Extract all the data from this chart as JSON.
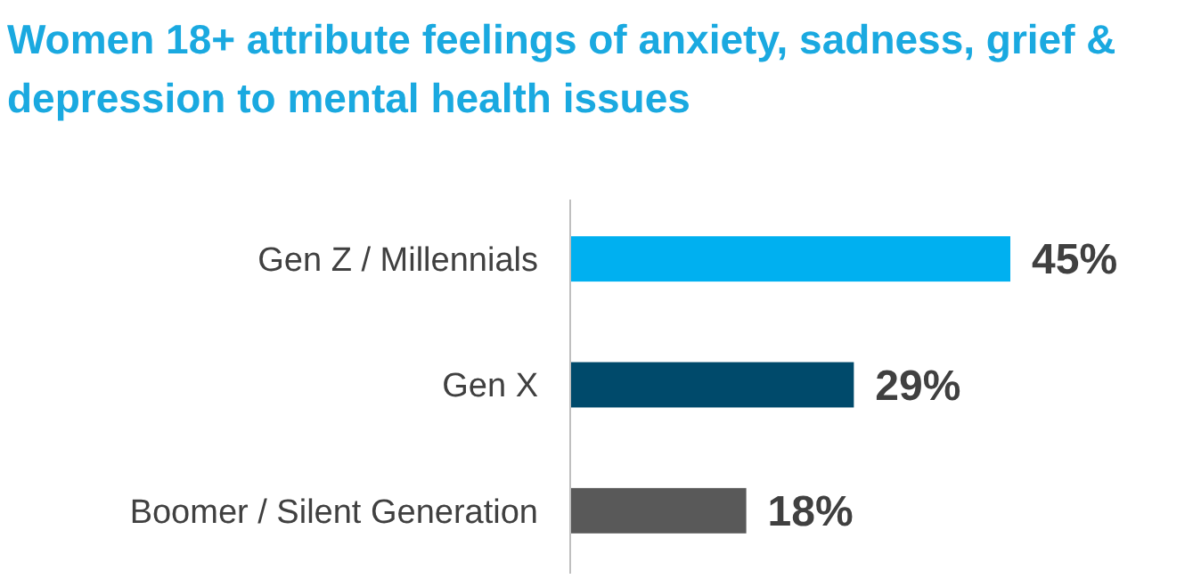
{
  "chart_data": {
    "type": "bar",
    "orientation": "horizontal",
    "title": "Women 18+ attribute feelings of anxiety, sadness, grief & depression to mental health issues",
    "categories": [
      "Gen Z / Millennials",
      "Gen X",
      "Boomer / Silent Generation"
    ],
    "values": [
      45,
      29,
      18
    ],
    "colors": [
      "#00b0f0",
      "#004a6b",
      "#595959"
    ],
    "value_labels": [
      "45%",
      "29%",
      "18%"
    ]
  }
}
